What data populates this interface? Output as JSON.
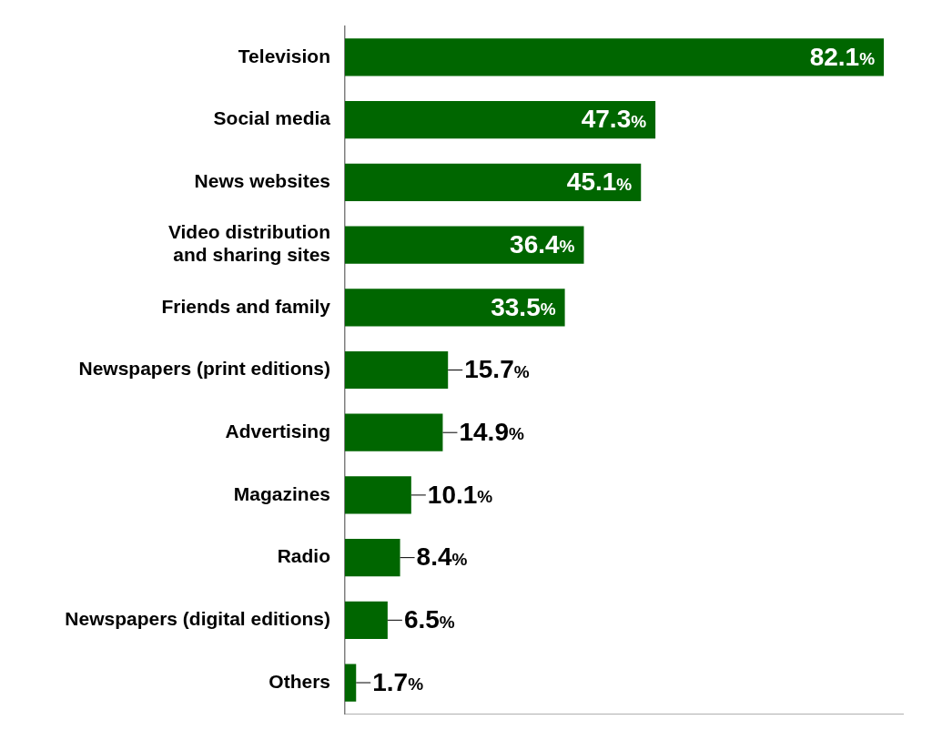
{
  "chart_data": {
    "type": "bar",
    "orientation": "horizontal",
    "categories": [
      "Television",
      "Social media",
      "News websites",
      "Video distribution and sharing sites",
      "Friends and family",
      "Newspapers (print editions)",
      "Advertising",
      "Magazines",
      "Radio",
      "Newspapers (digital editions)",
      "Others"
    ],
    "values": [
      82.1,
      47.3,
      45.1,
      36.4,
      33.5,
      15.7,
      14.9,
      10.1,
      8.4,
      6.5,
      1.7
    ],
    "value_labels": [
      "82.1%",
      "47.3%",
      "45.1%",
      "36.4%",
      "33.5%",
      "15.7%",
      "14.9%",
      "10.1%",
      "8.4%",
      "6.5%",
      "1.7%"
    ],
    "color": "#006600",
    "xlim": [
      0,
      85
    ],
    "grid": false,
    "data_labels": true,
    "tick_labels": "y"
  }
}
